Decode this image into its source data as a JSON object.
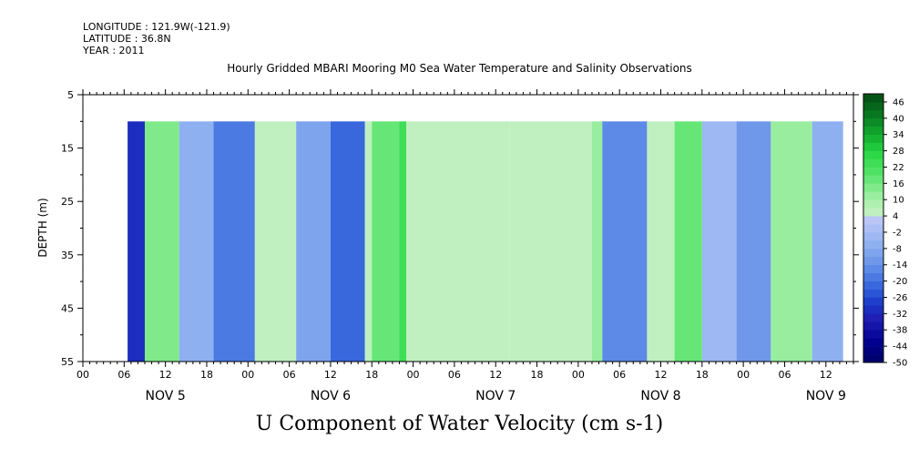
{
  "header": {
    "longitude": "LONGITUDE : 121.9W(-121.9)",
    "latitude": "LATITUDE : 36.8N",
    "year": "YEAR : 2011"
  },
  "chart_data": {
    "type": "heatmap",
    "title": "Hourly Gridded MBARI Mooring M0 Sea Water Temperature and Salinity Observations",
    "variable_title": "U Component of Water Velocity (cm s-1)",
    "ylabel": "DEPTH (m)",
    "y_ticks": [
      5,
      15,
      25,
      35,
      45,
      55
    ],
    "ylim": [
      55,
      5
    ],
    "y_inverted": true,
    "data_depth_range": [
      10,
      55
    ],
    "x_hour_ticks": [
      "00",
      "06",
      "12",
      "18",
      "00",
      "06",
      "12",
      "18",
      "00",
      "06",
      "12",
      "18",
      "00",
      "06",
      "12",
      "18",
      "00",
      "06",
      "12"
    ],
    "x_day_labels": [
      "NOV 5",
      "NOV 6",
      "NOV 7",
      "NOV 8",
      "NOV 9"
    ],
    "x_range_hours": [
      0,
      112
    ],
    "data_start_hour": 6.5,
    "data_end_hour": 110.5,
    "colorbar": {
      "tick_labels": [
        "46",
        "40",
        "34",
        "28",
        "22",
        "16",
        "10",
        "4",
        "-2",
        "-8",
        "-14",
        "-20",
        "-26",
        "-32",
        "-38",
        "-44",
        "-50"
      ],
      "levels": [
        -50,
        -47,
        -44,
        -41,
        -38,
        -35,
        -32,
        -29,
        -26,
        -23,
        -20,
        -17,
        -14,
        -11,
        -8,
        -5,
        -2,
        1,
        4,
        7,
        10,
        13,
        16,
        19,
        22,
        25,
        28,
        31,
        34,
        37,
        40,
        43,
        46,
        49
      ],
      "colors": [
        "#000070",
        "#00007f",
        "#00008f",
        "#0a0a9c",
        "#1515a8",
        "#1f1fb4",
        "#1c2dc0",
        "#1e3ecb",
        "#2a55d4",
        "#3868dc",
        "#4a7ae2",
        "#5c8ae6",
        "#6f98ea",
        "#7fa4ee",
        "#8fb0f0",
        "#9db8f2",
        "#acbff4",
        "#bcc6f6",
        "#c0f0c0",
        "#aef0b0",
        "#98ee9e",
        "#80ea8a",
        "#66e676",
        "#4ee264",
        "#3ede56",
        "#2cd848",
        "#1ec83c",
        "#16b433",
        "#10a02c",
        "#0b8c26",
        "#087820",
        "#06661b",
        "#045416"
      ]
    },
    "regions": [
      {
        "hours": [
          6.5,
          9
        ],
        "value": -30
      },
      {
        "hours": [
          9,
          14
        ],
        "value": 14
      },
      {
        "hours": [
          14,
          19
        ],
        "value": -6
      },
      {
        "hours": [
          19,
          25
        ],
        "value": -18
      },
      {
        "hours": [
          25,
          31
        ],
        "value": 6
      },
      {
        "hours": [
          31,
          36
        ],
        "value": -10
      },
      {
        "hours": [
          36,
          41
        ],
        "value": -22
      },
      {
        "hours": [
          41,
          42
        ],
        "value": 4
      },
      {
        "hours": [
          42,
          46
        ],
        "value": 16
      },
      {
        "hours": [
          46,
          47
        ],
        "value": 22
      },
      {
        "hours": [
          47,
          62
        ],
        "value": 6
      },
      {
        "hours": [
          62,
          74
        ],
        "value": 4
      },
      {
        "hours": [
          74,
          75.5
        ],
        "value": 12
      },
      {
        "hours": [
          75.5,
          82
        ],
        "value": -16
      },
      {
        "hours": [
          82,
          86
        ],
        "value": 6
      },
      {
        "hours": [
          86,
          90
        ],
        "value": 18
      },
      {
        "hours": [
          90,
          95
        ],
        "value": -4
      },
      {
        "hours": [
          95,
          100
        ],
        "value": -14
      },
      {
        "hours": [
          100,
          106
        ],
        "value": 10
      },
      {
        "hours": [
          106,
          110.5
        ],
        "value": -8
      }
    ]
  }
}
